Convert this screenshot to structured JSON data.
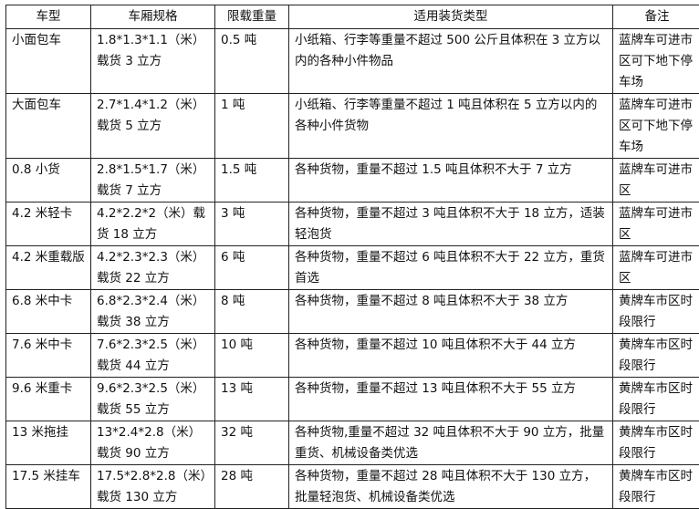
{
  "headers": [
    "车型",
    "车厢规格",
    "限载重量",
    "适用装货类型",
    "备注"
  ],
  "rows": [
    [
      "小面包车",
      "1.8*1.3*1.1（米）载货 3 立方",
      "0.5 吨",
      "小纸箱、行李等重量不超过 500 公斤且体积在 3 立方以内的各种小件物品",
      "蓝牌车可进市区可下地下停车场"
    ],
    [
      "大面包车",
      "2.7*1.4*1.2（米）载货 5 立方",
      "1 吨",
      "小纸箱、行李等重量不超过 1 吨且体积在 5 立方以内的各种小件货物",
      "蓝牌车可进市区可下地下停车场"
    ],
    [
      "0.8 小货",
      "2.8*1.5*1.7（米）载货 7 立方",
      "1.5 吨",
      "各种货物，重量不超过 1.5 吨且体积不大于 7 立方",
      "蓝牌车可进市区"
    ],
    [
      "4.2 米轻卡",
      "4.2*2.2*2（米）载货 18 立方",
      "3 吨",
      "各种货物，重量不超过 3 吨且体积不大于 18 立方，适装轻泡货",
      "蓝牌车可进市区"
    ],
    [
      "4.2 米重载版",
      "4.2*2.3*2.3（米）载货 22 立方",
      "6 吨",
      "各种货物，重量不超过 6 吨且体积不大于 22 立方，重货首选",
      "蓝牌车可进市区"
    ],
    [
      "6.8 米中卡",
      "6.8*2.3*2.4（米）载货 38 立方",
      "8 吨",
      "各种货物，重量不超过 8 吨且体积不大于 38 立方",
      "黄牌车市区时段限行"
    ],
    [
      "7.6 米中卡",
      "7.6*2.3*2.5（米）载货 44 立方",
      "10 吨",
      "各种货物，重量不超过 10 吨且体积不大于 44 立方",
      "黄牌车市区时段限行"
    ],
    [
      "9.6 米重卡",
      "9.6*2.3*2.5（米）载货 55 立方",
      "13 吨",
      "各种货物，重量不超过 13 吨且体积不大于 55 立方",
      "黄牌车市区时段限行"
    ],
    [
      "13 米拖挂",
      "13*2.4*2.8（米）载货 90 立方",
      "32 吨",
      "各种货物,重量不超过 32 吨且体积不大于 90 立方，批量重货、机械设备类优选",
      "黄牌车市区时段限行"
    ],
    [
      "17.5 米挂车",
      "17.5*2.8*2.8（米）载货 130 立方",
      "28 吨",
      "各种货物，重量不超过 28 吨且体积不大于 130 立方，批量轻泡货、机械设备类优选",
      "黄牌车市区时段限行"
    ]
  ]
}
